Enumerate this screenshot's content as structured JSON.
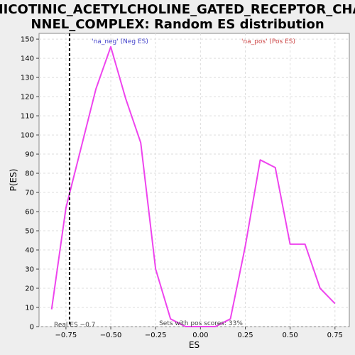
{
  "chart_data": {
    "type": "line",
    "title_line1": "NICOTINIC_ACETYLCHOLINE_GATED_RECEPTOR_CHA",
    "title_line2": "NNEL_COMPLEX: Random ES distribution",
    "xlabel": "ES",
    "ylabel": "P(ES)",
    "xlim": [
      -0.9,
      0.83
    ],
    "ylim": [
      0,
      153
    ],
    "x_ticks": [
      -0.75,
      -0.5,
      -0.25,
      0.0,
      0.25,
      0.5,
      0.75
    ],
    "x_tick_labels": [
      "−0.75",
      "−0.50",
      "−0.25",
      "0.00",
      "0.25",
      "0.50",
      "0.75"
    ],
    "y_ticks": [
      0,
      10,
      20,
      30,
      40,
      50,
      60,
      70,
      80,
      90,
      100,
      110,
      120,
      130,
      140,
      150
    ],
    "y_tick_labels": [
      "0",
      "10",
      "20",
      "30",
      "40",
      "50",
      "60",
      "70",
      "80",
      "90",
      "100",
      "110",
      "120",
      "130",
      "140",
      "150"
    ],
    "grid": true,
    "series": [
      {
        "color": "#ee44ee",
        "x": [
          -0.83,
          -0.75,
          -0.583,
          -0.5,
          -0.417,
          -0.333,
          -0.25,
          -0.167,
          -0.083,
          0.0,
          0.083,
          0.167,
          0.25,
          0.333,
          0.417,
          0.5,
          0.583,
          0.667,
          0.75
        ],
        "y": [
          9,
          62,
          124,
          146,
          119,
          96,
          30,
          4,
          0,
          0,
          0,
          4,
          42,
          87,
          83,
          43,
          43,
          20,
          12
        ]
      }
    ],
    "real_es": {
      "value": -0.73,
      "label": "Real ES −0.7",
      "color": "#000000"
    },
    "annotations": {
      "neg_label": "'na_neg' (Neg ES)",
      "neg_color": "#4444cc",
      "pos_label": "'na_pos' (Pos ES)",
      "pos_color": "#cc4444",
      "pos_scores": "Sets with pos scores: 33%"
    },
    "colors": {
      "background": "#eeeeee",
      "plot_bg": "#ffffff",
      "grid": "#dddddd"
    }
  }
}
